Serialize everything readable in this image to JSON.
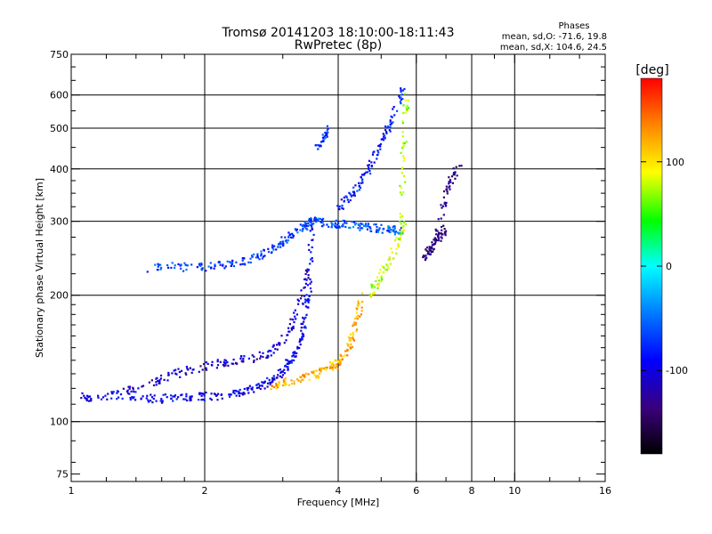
{
  "chart_data": {
    "type": "scatter",
    "title": "Tromsø 20141203 18:10:00-18:11:43",
    "subtitle": "RwPretec (8p)",
    "xlabel": "Frequency [MHz]",
    "ylabel": "Stationary phase Virtual Height [km]",
    "x_scale": "log",
    "y_scale": "log",
    "xlim": [
      1,
      16
    ],
    "ylim": [
      72,
      750
    ],
    "grid": true,
    "x_ticks_major": [
      1,
      2,
      4,
      6,
      8,
      10,
      16
    ],
    "x_ticks_minor": [
      1.2,
      1.4,
      1.6,
      1.8,
      3,
      5,
      7,
      9,
      12,
      14
    ],
    "y_ticks_major": [
      75,
      100,
      200,
      300,
      400,
      500,
      600,
      750
    ],
    "y_ticks_minor": [
      80,
      90,
      110,
      120,
      130,
      140,
      150,
      160,
      170,
      180,
      190,
      225,
      250,
      275,
      325,
      350,
      375,
      450,
      550,
      650,
      700
    ],
    "y_gridlines": [
      100,
      200,
      300,
      400,
      500,
      600
    ],
    "x_gridlines": [
      2,
      4,
      6,
      8,
      10
    ],
    "stats_title": "Phases",
    "stats": [
      "mean, sd,O: -71.6, 19.8",
      "mean, sd,X: 104.6, 24.5"
    ],
    "colorbar": {
      "label": "[deg]",
      "range": [
        -180,
        180
      ],
      "ticks": [
        100,
        0,
        -100
      ],
      "colors": [
        "#000000",
        "#3a007a",
        "#0000ff",
        "#0080ff",
        "#00ffff",
        "#00ff00",
        "#ffff00",
        "#ff8000",
        "#ff0000"
      ]
    },
    "series": [
      {
        "x": [
          1.04,
          1.1,
          1.25,
          1.4,
          1.55,
          1.7,
          1.85,
          2.0,
          2.2,
          2.4,
          2.55,
          2.7,
          2.85,
          3.0,
          3.1,
          3.2,
          3.3,
          3.38,
          3.42,
          3.46,
          3.5
        ],
        "y": [
          115,
          114,
          116,
          115,
          113,
          114,
          114,
          115,
          115,
          117,
          119,
          122,
          126,
          131,
          138,
          146,
          158,
          175,
          200,
          240,
          290
        ],
        "phase": -95
      },
      {
        "x": [
          1.3,
          1.45,
          1.6,
          1.8,
          2.0,
          2.2,
          2.4,
          2.6,
          2.8,
          3.0,
          3.15,
          3.3,
          3.4
        ],
        "y": [
          118,
          122,
          127,
          132,
          135,
          138,
          140,
          142,
          146,
          155,
          170,
          195,
          230
        ],
        "phase": -110
      },
      {
        "x": [
          1.5,
          1.7,
          1.9,
          2.1,
          2.3,
          2.5,
          2.7,
          2.9,
          3.05,
          3.2,
          3.35,
          3.45,
          3.55
        ],
        "y": [
          232,
          234,
          233,
          235,
          238,
          242,
          250,
          262,
          272,
          282,
          292,
          298,
          302
        ],
        "phase": -70
      },
      {
        "x": [
          2.8,
          3.0,
          3.2,
          3.4,
          3.6,
          3.8,
          3.95,
          4.1,
          4.25,
          4.35,
          4.45,
          4.5
        ],
        "y": [
          121,
          124,
          126,
          128,
          130,
          133,
          137,
          143,
          152,
          165,
          180,
          200
        ],
        "phase": 120
      },
      {
        "x": [
          3.5,
          3.75,
          4.0,
          4.25,
          4.5,
          4.75,
          5.0,
          5.3,
          5.6
        ],
        "y": [
          300,
          298,
          296,
          294,
          292,
          290,
          288,
          286,
          285
        ],
        "phase": -60
      },
      {
        "x": [
          4.0,
          4.2,
          4.4,
          4.6,
          4.8,
          5.0,
          5.2,
          5.4,
          5.6
        ],
        "y": [
          320,
          340,
          360,
          385,
          420,
          460,
          500,
          560,
          620
        ],
        "phase": -85
      },
      {
        "x": [
          4.7,
          4.9,
          5.1,
          5.3,
          5.5,
          5.6
        ],
        "y": [
          200,
          215,
          230,
          250,
          275,
          300
        ],
        "phase": 80
      },
      {
        "x": [
          5.5,
          5.6,
          5.65,
          5.7
        ],
        "y": [
          300,
          400,
          500,
          620
        ],
        "phase": 75
      },
      {
        "x": [
          6.2,
          6.4,
          6.6,
          6.8,
          7.0
        ],
        "y": [
          245,
          255,
          265,
          275,
          290
        ],
        "phase": -140
      },
      {
        "x": [
          6.5,
          6.8,
          7.0,
          7.2,
          7.5
        ],
        "y": [
          250,
          300,
          350,
          380,
          410
        ],
        "phase": -130
      },
      {
        "x": [
          3.6,
          3.7,
          3.8
        ],
        "y": [
          450,
          470,
          500
        ],
        "phase": -75
      }
    ]
  }
}
